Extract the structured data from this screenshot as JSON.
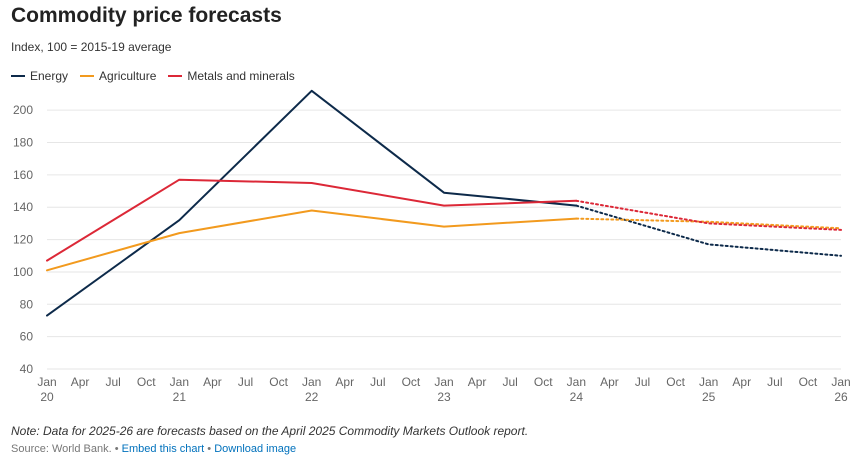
{
  "header": {
    "title": "Commodity price forecasts",
    "subtitle": "Index, 100 = 2015-19 average"
  },
  "footer": {
    "note": "Note: Data for 2025-26 are forecasts based on the April 2025 Commodity Markets Outlook report.",
    "source_label": "Source: World Bank.",
    "separator": "•",
    "embed_label": "Embed this chart",
    "download_label": "Download image"
  },
  "chart_data": {
    "type": "line",
    "ylim": [
      40,
      210
    ],
    "yticks": [
      40,
      60,
      80,
      100,
      120,
      140,
      160,
      180,
      200
    ],
    "x_tick_labels": [
      {
        "top": "Jan",
        "bottom": "20"
      },
      {
        "top": "Apr",
        "bottom": ""
      },
      {
        "top": "Jul",
        "bottom": ""
      },
      {
        "top": "Oct",
        "bottom": ""
      },
      {
        "top": "Jan",
        "bottom": "21"
      },
      {
        "top": "Apr",
        "bottom": ""
      },
      {
        "top": "Jul",
        "bottom": ""
      },
      {
        "top": "Oct",
        "bottom": ""
      },
      {
        "top": "Jan",
        "bottom": "22"
      },
      {
        "top": "Apr",
        "bottom": ""
      },
      {
        "top": "Jul",
        "bottom": ""
      },
      {
        "top": "Oct",
        "bottom": ""
      },
      {
        "top": "Jan",
        "bottom": "23"
      },
      {
        "top": "Apr",
        "bottom": ""
      },
      {
        "top": "Jul",
        "bottom": ""
      },
      {
        "top": "Oct",
        "bottom": ""
      },
      {
        "top": "Jan",
        "bottom": "24"
      },
      {
        "top": "Apr",
        "bottom": ""
      },
      {
        "top": "Jul",
        "bottom": ""
      },
      {
        "top": "Oct",
        "bottom": ""
      },
      {
        "top": "Jan",
        "bottom": "25"
      },
      {
        "top": "Apr",
        "bottom": ""
      },
      {
        "top": "Jul",
        "bottom": ""
      },
      {
        "top": "Oct",
        "bottom": ""
      },
      {
        "top": "Jan",
        "bottom": "26"
      }
    ],
    "grid": true,
    "legend_position": "top-left",
    "forecast_style": "dotted",
    "series": [
      {
        "name": "Energy",
        "color": "#0d2a4a",
        "actual": [
          [
            "2020-01",
            73
          ],
          [
            "2021-01",
            132
          ],
          [
            "2022-01",
            212
          ],
          [
            "2023-01",
            149
          ],
          [
            "2024-01",
            141
          ]
        ],
        "forecast": [
          [
            "2024-01",
            141
          ],
          [
            "2025-01",
            117
          ],
          [
            "2026-01",
            110
          ]
        ]
      },
      {
        "name": "Agriculture",
        "color": "#f29a1e",
        "actual": [
          [
            "2020-01",
            101
          ],
          [
            "2021-01",
            124
          ],
          [
            "2022-01",
            138
          ],
          [
            "2023-01",
            128
          ],
          [
            "2024-01",
            133
          ]
        ],
        "forecast": [
          [
            "2024-01",
            133
          ],
          [
            "2025-01",
            131
          ],
          [
            "2026-01",
            127
          ]
        ]
      },
      {
        "name": "Metals and minerals",
        "color": "#dc2837",
        "actual": [
          [
            "2020-01",
            107
          ],
          [
            "2021-01",
            157
          ],
          [
            "2022-01",
            155
          ],
          [
            "2023-01",
            141
          ],
          [
            "2024-01",
            144
          ]
        ],
        "forecast": [
          [
            "2024-01",
            144
          ],
          [
            "2025-01",
            130
          ],
          [
            "2026-01",
            126
          ]
        ]
      }
    ]
  }
}
